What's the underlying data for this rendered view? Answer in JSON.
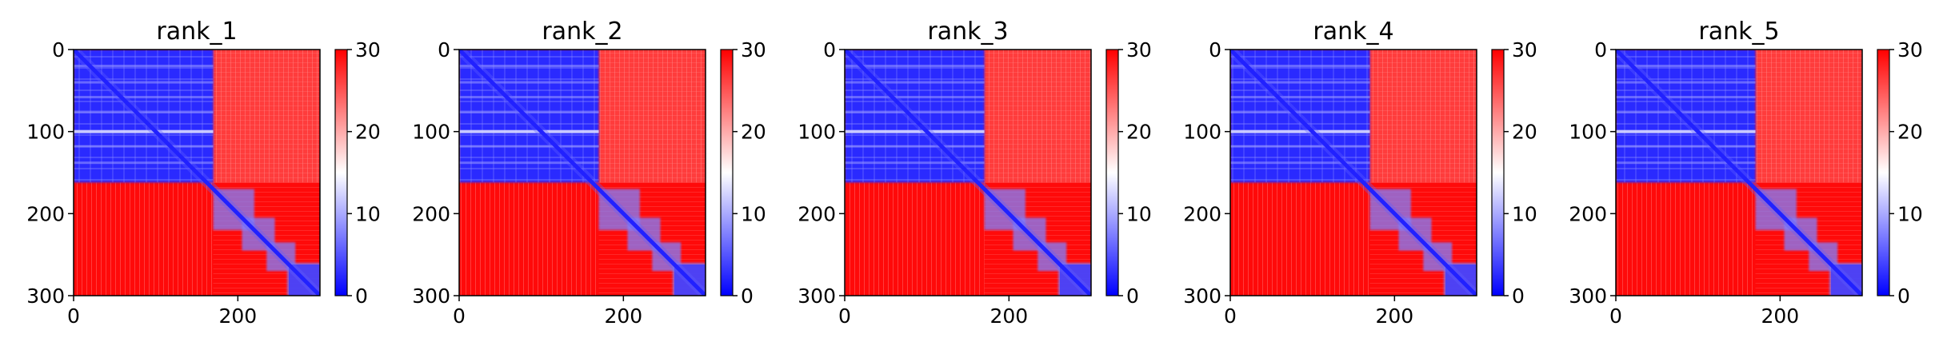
{
  "figure": {
    "colormap": "bwr",
    "colors": {
      "low": "#0000ff",
      "mid": "#ffffff",
      "high": "#ff0000"
    }
  },
  "chart_data": [
    {
      "type": "heatmap",
      "title": "rank_1",
      "xlim": [
        0,
        300
      ],
      "ylim": [
        300,
        0
      ],
      "xticks": [
        0,
        200
      ],
      "yticks": [
        0,
        100,
        200,
        300
      ],
      "colorbar": {
        "range": [
          0,
          30
        ],
        "ticks": [
          0,
          10,
          20,
          30
        ]
      },
      "blocks": [
        {
          "x": [
            0,
            170
          ],
          "y": [
            0,
            160
          ],
          "value": 3,
          "note_free": true
        },
        {
          "x": [
            170,
            300
          ],
          "y": [
            0,
            160
          ],
          "value": 27
        },
        {
          "x": [
            0,
            170
          ],
          "y": [
            160,
            300
          ],
          "value": 27
        },
        {
          "x": [
            170,
            300
          ],
          "y": [
            160,
            300
          ],
          "value": 25
        }
      ],
      "diagonal": {
        "value": 0
      }
    },
    {
      "type": "heatmap",
      "title": "rank_2",
      "xlim": [
        0,
        300
      ],
      "ylim": [
        300,
        0
      ],
      "xticks": [
        0,
        200
      ],
      "yticks": [
        0,
        100,
        200,
        300
      ],
      "colorbar": {
        "range": [
          0,
          30
        ],
        "ticks": [
          0,
          10,
          20,
          30
        ]
      }
    },
    {
      "type": "heatmap",
      "title": "rank_3",
      "xlim": [
        0,
        300
      ],
      "ylim": [
        300,
        0
      ],
      "xticks": [
        0,
        200
      ],
      "yticks": [
        0,
        100,
        200,
        300
      ],
      "colorbar": {
        "range": [
          0,
          30
        ],
        "ticks": [
          0,
          10,
          20,
          30
        ]
      }
    },
    {
      "type": "heatmap",
      "title": "rank_4",
      "xlim": [
        0,
        300
      ],
      "ylim": [
        300,
        0
      ],
      "xticks": [
        0,
        200
      ],
      "yticks": [
        0,
        100,
        200,
        300
      ],
      "colorbar": {
        "range": [
          0,
          30
        ],
        "ticks": [
          0,
          10,
          20,
          30
        ]
      }
    },
    {
      "type": "heatmap",
      "title": "rank_5",
      "xlim": [
        0,
        300
      ],
      "ylim": [
        300,
        0
      ],
      "xticks": [
        0,
        200
      ],
      "yticks": [
        0,
        100,
        200,
        300
      ],
      "colorbar": {
        "range": [
          0,
          30
        ],
        "ticks": [
          0,
          10,
          20,
          30
        ]
      }
    }
  ]
}
